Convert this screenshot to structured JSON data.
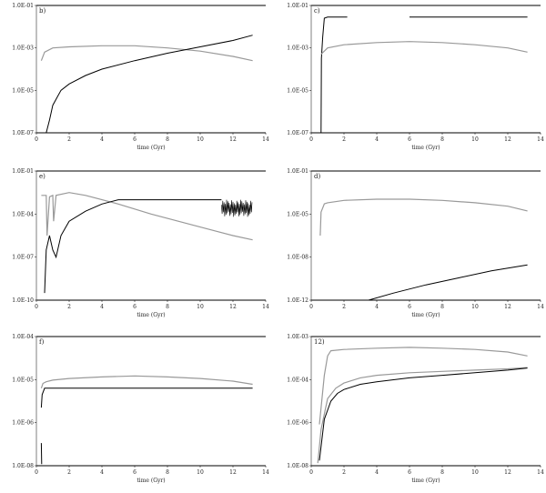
{
  "chart_data": [
    {
      "type": "line",
      "panel_label": "b)",
      "xlabel": "time (Gyr)",
      "ylabel": "",
      "xlim": [
        0,
        14
      ],
      "ylim_log10": [
        -7,
        -1
      ],
      "y_scale": "log",
      "x_ticks": [
        0,
        2,
        4,
        6,
        8,
        10,
        12,
        14
      ],
      "y_ticks": [
        "1.0E-07",
        "1.0E-05",
        "1.0E-03",
        "1.0E-01"
      ],
      "grid": false,
      "series": [
        {
          "color": "#999999",
          "style": "solid",
          "x": [
            0.3,
            0.5,
            1.0,
            2.0,
            4.0,
            6.0,
            8.0,
            10.0,
            12.0,
            13.2
          ],
          "y_log10": [
            -3.6,
            -3.2,
            -3.0,
            -2.95,
            -2.9,
            -2.9,
            -3.0,
            -3.15,
            -3.4,
            -3.6
          ]
        },
        {
          "color": "#000000",
          "style": "solid",
          "x": [
            0.6,
            0.8,
            1.0,
            1.5,
            2.0,
            3.0,
            4.0,
            6.0,
            8.0,
            10.0,
            12.0,
            13.2
          ],
          "y_log10": [
            -7.0,
            -6.4,
            -5.7,
            -5.0,
            -4.7,
            -4.3,
            -4.0,
            -3.6,
            -3.25,
            -2.95,
            -2.65,
            -2.4
          ]
        }
      ]
    },
    {
      "type": "line",
      "panel_label": "c)",
      "xlabel": "time (Gyr)",
      "ylabel": "",
      "xlim": [
        0,
        14
      ],
      "ylim_log10": [
        -7,
        -1
      ],
      "y_scale": "log",
      "x_ticks": [
        0,
        2,
        4,
        6,
        8,
        10,
        12,
        14
      ],
      "y_ticks": [
        "1.0E-07",
        "1.0E-05",
        "1.0E-03",
        "1.0E-01"
      ],
      "grid": false,
      "series": [
        {
          "color": "#000000",
          "style": "solid",
          "x": [
            0.6,
            0.62,
            0.7,
            0.8,
            1.0,
            1.5,
            2.2
          ],
          "y_log10": [
            -7.0,
            -3.5,
            -2.5,
            -1.6,
            -1.55,
            -1.55,
            -1.55
          ]
        },
        {
          "color": "#000000",
          "style": "solid",
          "x": [
            6.0,
            13.2
          ],
          "y_log10": [
            -1.55,
            -1.55
          ]
        },
        {
          "color": "#999999",
          "style": "solid",
          "x": [
            0.6,
            1.0,
            2.0,
            4.0,
            6.0,
            8.0,
            10.0,
            12.0,
            13.2
          ],
          "y_log10": [
            -3.3,
            -3.0,
            -2.85,
            -2.75,
            -2.7,
            -2.75,
            -2.85,
            -3.0,
            -3.2
          ]
        }
      ]
    },
    {
      "type": "line",
      "panel_label": "e)",
      "xlabel": "time (Gyr)",
      "ylabel": "",
      "xlim": [
        0,
        14
      ],
      "ylim_log10": [
        -10,
        -1
      ],
      "y_scale": "log",
      "x_ticks": [
        0,
        2,
        4,
        6,
        8,
        10,
        12,
        14
      ],
      "y_ticks": [
        "1.0E-10",
        "1.0E-07",
        "1.0E-04",
        "1.0E-01"
      ],
      "grid": false,
      "series": [
        {
          "color": "#999999",
          "style": "solid",
          "x": [
            0.3,
            0.6,
            0.65,
            0.8,
            1.0,
            1.05,
            1.2,
            2.0,
            3.0,
            5.0,
            7.0,
            9.0,
            11.0,
            12.0,
            13.2
          ],
          "y_log10": [
            -2.7,
            -2.7,
            -5.5,
            -2.8,
            -2.7,
            -4.5,
            -2.7,
            -2.5,
            -2.7,
            -3.3,
            -4.0,
            -4.6,
            -5.2,
            -5.5,
            -5.8
          ]
        },
        {
          "color": "#000000",
          "style": "solid",
          "x": [
            0.5,
            0.6,
            0.8,
            1.0,
            1.2,
            1.5,
            2.0,
            3.0,
            4.0,
            5.0
          ],
          "y_log10": [
            -9.5,
            -6.5,
            -5.5,
            -6.5,
            -7.0,
            -5.5,
            -4.5,
            -3.8,
            -3.3,
            -3.0
          ]
        },
        {
          "color": "#000000",
          "style": "solid",
          "x": [
            5.0,
            11.3
          ],
          "y_log10": [
            -3.0,
            -3.0
          ]
        },
        {
          "color": "#000000",
          "style": "noisy",
          "x": [
            11.3,
            12.2,
            13.2
          ],
          "y_log10": [
            -3.6,
            -3.6,
            -3.6
          ]
        }
      ]
    },
    {
      "type": "line",
      "panel_label": "d)",
      "xlabel": "time (Gyr)",
      "ylabel": "",
      "xlim": [
        0,
        14
      ],
      "ylim_log10": [
        -12,
        -1
      ],
      "y_scale": "log",
      "x_ticks": [
        0,
        2,
        4,
        6,
        8,
        10,
        12,
        14
      ],
      "y_ticks": [
        "1.0E-12",
        "1.0E-08",
        "1.0E-05",
        "1.0E-01"
      ],
      "grid": false,
      "series": [
        {
          "color": "#999999",
          "style": "solid",
          "x": [
            0.55,
            0.6,
            0.8,
            1.0,
            2.0,
            4.0,
            6.0,
            8.0,
            10.0,
            12.0,
            13.2
          ],
          "y_log10": [
            -6.5,
            -4.5,
            -3.8,
            -3.7,
            -3.5,
            -3.4,
            -3.4,
            -3.5,
            -3.7,
            -4.0,
            -4.4
          ]
        },
        {
          "color": "#000000",
          "style": "solid",
          "x": [
            3.5,
            5.0,
            7.0,
            9.0,
            11.0,
            13.2
          ],
          "y_log10": [
            -12.0,
            -11.4,
            -10.7,
            -10.1,
            -9.5,
            -9.0
          ]
        }
      ]
    },
    {
      "type": "line",
      "panel_label": "f)",
      "xlabel": "time (Gyr)",
      "ylabel": "",
      "xlim": [
        0,
        14
      ],
      "ylim_log10": [
        -8,
        -4
      ],
      "y_scale": "log",
      "x_ticks": [
        0,
        2,
        4,
        6,
        8,
        10,
        12,
        14
      ],
      "y_ticks": [
        "1.0E-08",
        "1.0E-06",
        "1.0E-05",
        "1.0E-04"
      ],
      "grid": false,
      "series": [
        {
          "color": "#999999",
          "style": "solid",
          "x": [
            0.3,
            0.4,
            0.6,
            1.0,
            2.0,
            4.0,
            6.0,
            8.0,
            10.0,
            12.0,
            13.2
          ],
          "y_log10": [
            -5.6,
            -5.45,
            -5.4,
            -5.35,
            -5.3,
            -5.25,
            -5.22,
            -5.25,
            -5.3,
            -5.38,
            -5.48
          ]
        },
        {
          "color": "#000000",
          "style": "solid",
          "x": [
            0.3,
            0.35,
            0.5,
            1.0,
            2.0,
            4.0,
            6.0,
            8.0,
            10.0,
            12.0,
            13.2
          ],
          "y_log10": [
            -6.2,
            -5.8,
            -5.6,
            -5.6,
            -5.6,
            -5.6,
            -5.6,
            -5.6,
            -5.6,
            -5.6,
            -5.6
          ]
        },
        {
          "color": "#000000",
          "style": "solid",
          "x": [
            0.3,
            0.32
          ],
          "y_log10": [
            -7.3,
            -7.95
          ]
        }
      ]
    },
    {
      "type": "line",
      "panel_label": "12)",
      "xlabel": "time (Gyr)",
      "ylabel": "",
      "xlim": [
        0,
        14
      ],
      "ylim_log10": [
        -8,
        -3
      ],
      "y_scale": "log",
      "x_ticks": [
        0,
        2,
        4,
        6,
        8,
        10,
        12,
        14
      ],
      "y_ticks": [
        "1.0E-08",
        "1.0E-06",
        "1.0E-04",
        "1.0E-03"
      ],
      "grid": false,
      "series": [
        {
          "color": "#999999",
          "style": "solid",
          "x": [
            0.5,
            0.8,
            1.0,
            1.2,
            2.0,
            4.0,
            6.0,
            8.0,
            10.0,
            12.0,
            13.2
          ],
          "y_log10": [
            -6.4,
            -4.5,
            -3.75,
            -3.55,
            -3.5,
            -3.45,
            -3.42,
            -3.45,
            -3.5,
            -3.6,
            -3.75
          ]
        },
        {
          "color": "#999999",
          "style": "solid",
          "x": [
            0.4,
            0.6,
            1.0,
            1.5,
            2.0,
            3.0,
            4.0,
            6.0,
            8.0,
            10.0,
            12.0,
            13.2
          ],
          "y_log10": [
            -7.9,
            -6.6,
            -5.4,
            -5.0,
            -4.8,
            -4.6,
            -4.5,
            -4.4,
            -4.35,
            -4.3,
            -4.25,
            -4.2
          ]
        },
        {
          "color": "#000000",
          "style": "solid",
          "x": [
            0.5,
            0.8,
            1.2,
            1.6,
            2.0,
            3.0,
            4.0,
            6.0,
            8.0,
            10.0,
            12.0,
            13.2
          ],
          "y_log10": [
            -7.8,
            -6.2,
            -5.5,
            -5.2,
            -5.05,
            -4.85,
            -4.75,
            -4.6,
            -4.5,
            -4.4,
            -4.3,
            -4.22
          ]
        }
      ]
    }
  ]
}
